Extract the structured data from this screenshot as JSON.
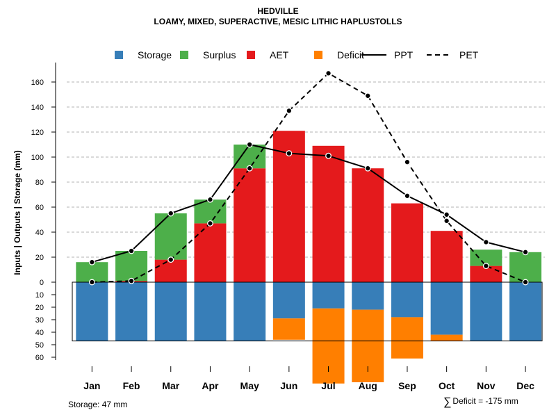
{
  "title": "HEDVILLE",
  "subtitle": "LOAMY, MIXED, SUPERACTIVE, MESIC LITHIC HAPLUSTOLLS",
  "chart_data": {
    "type": "bar",
    "ylabel": "Inputs | Outputs | Storage    (mm)",
    "categories": [
      "Jan",
      "Feb",
      "Mar",
      "Apr",
      "May",
      "Jun",
      "Jul",
      "Aug",
      "Sep",
      "Oct",
      "Nov",
      "Dec"
    ],
    "upper_ylim": [
      0,
      170
    ],
    "upper_ticks": [
      "0",
      "20",
      "40",
      "60",
      "80",
      "100",
      "120",
      "140",
      "160"
    ],
    "lower_ylim": [
      0,
      60
    ],
    "lower_ticks": [
      "0",
      "10",
      "20",
      "30",
      "40",
      "50",
      "60"
    ],
    "legend": [
      {
        "key": "storage",
        "label": "Storage",
        "kind": "box",
        "color": "#377EB8"
      },
      {
        "key": "surplus",
        "label": "Surplus",
        "kind": "box",
        "color": "#4DAF4A"
      },
      {
        "key": "aet",
        "label": "AET",
        "kind": "box",
        "color": "#E41A1C"
      },
      {
        "key": "deficit",
        "label": "Deficit",
        "kind": "box",
        "color": "#FF7F00"
      },
      {
        "key": "ppt",
        "label": "PPT",
        "kind": "solid",
        "color": "#000000"
      },
      {
        "key": "pet",
        "label": "PET",
        "kind": "dashed",
        "color": "#000000"
      }
    ],
    "series": [
      {
        "name": "AET",
        "values": [
          0,
          1,
          18,
          47,
          91,
          121,
          109,
          91,
          63,
          41,
          13,
          0
        ]
      },
      {
        "name": "Surplus",
        "values": [
          16,
          24,
          37,
          19,
          19,
          0,
          0,
          0,
          0,
          0,
          13,
          24
        ]
      },
      {
        "name": "Storage",
        "values": [
          47,
          47,
          47,
          47,
          47,
          29,
          21,
          22,
          28,
          42,
          47,
          47
        ]
      },
      {
        "name": "Deficit",
        "values": [
          0,
          0,
          0,
          0,
          0,
          17,
          60,
          58,
          33,
          5,
          0,
          0
        ]
      },
      {
        "name": "PPT",
        "values": [
          16,
          25,
          55,
          66,
          110,
          103,
          101,
          91,
          69,
          54,
          32,
          24
        ]
      },
      {
        "name": "PET",
        "values": [
          0,
          1,
          18,
          47,
          91,
          137,
          167,
          149,
          96,
          49,
          13,
          0
        ]
      }
    ],
    "storage_capacity": 47
  },
  "footer": {
    "storage": "Storage: 47 mm",
    "deficit_symbol": "∑",
    "deficit": "Deficit = -175 mm"
  }
}
